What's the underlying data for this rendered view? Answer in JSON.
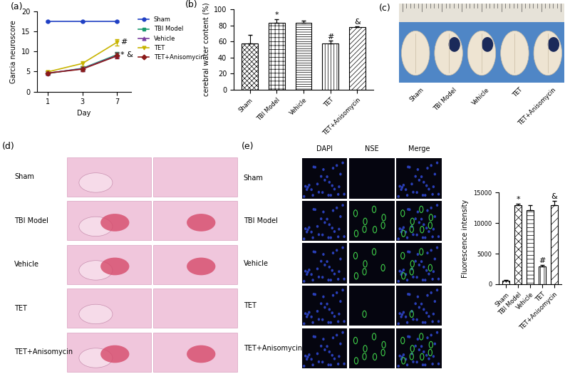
{
  "chart_data": [
    {
      "type": "line",
      "title": "(a)",
      "x_label": "Day",
      "y_label": "Garcia neuroscore",
      "categories": [
        "1",
        "3",
        "7"
      ],
      "ylim": [
        0,
        20
      ],
      "yticks": [
        0,
        5,
        10,
        15,
        20
      ],
      "legend": "right",
      "series": [
        {
          "name": "Sham",
          "color": "#1f3fc4",
          "marker": "circle",
          "values": [
            17.5,
            17.5,
            17.5
          ],
          "errors": [
            0.2,
            0.2,
            0.2
          ]
        },
        {
          "name": "TBI Model",
          "color": "#1a9a6e",
          "marker": "square",
          "values": [
            4.5,
            5.8,
            9.2
          ],
          "errors": [
            0.4,
            0.6,
            0.6
          ]
        },
        {
          "name": "Vehicle",
          "color": "#7b3fa0",
          "marker": "triangle",
          "values": [
            4.6,
            5.7,
            9.0
          ],
          "errors": [
            0.4,
            0.6,
            0.6
          ]
        },
        {
          "name": "TET",
          "color": "#c8b400",
          "marker": "triangle_down",
          "values": [
            4.9,
            7.0,
            12.3
          ],
          "errors": [
            0.4,
            0.6,
            0.8
          ]
        },
        {
          "name": "TET+Anisomycin",
          "color": "#8b1a1a",
          "marker": "diamond",
          "values": [
            4.6,
            5.6,
            8.9
          ],
          "errors": [
            0.4,
            0.6,
            0.7
          ]
        }
      ],
      "annotations": [
        {
          "series": "TET",
          "category": "7",
          "text": "#"
        },
        {
          "series": "TBI Model",
          "category": "7",
          "text": "* &"
        }
      ]
    },
    {
      "type": "bar",
      "title": "(b)",
      "y_label": "cerebral water content (%)",
      "categories": [
        "Sham",
        "TBI Model",
        "Vehicle",
        "TET",
        "TET+Anisomycin"
      ],
      "values": [
        58,
        83,
        83,
        58,
        78
      ],
      "errors": [
        10,
        5,
        3,
        3,
        1
      ],
      "color": "#ffffff",
      "ylim": [
        0,
        100
      ],
      "yticks": [
        0,
        20,
        40,
        60,
        80,
        100
      ],
      "annotations": [
        {
          "category": "TBI Model",
          "text": "*"
        },
        {
          "category": "TET",
          "text": "#"
        },
        {
          "category": "TET+Anisomycin",
          "text": "&"
        }
      ]
    },
    {
      "type": "bar",
      "y_label": "Fluorescence intensity",
      "categories": [
        "Sham",
        "TBI Model",
        "Vehicle",
        "TET",
        "TET+Anisomycin"
      ],
      "values": [
        600,
        12900,
        12100,
        2900,
        13000
      ],
      "errors": [
        100,
        300,
        800,
        300,
        700
      ],
      "color": "#ffffff",
      "ylim": [
        0,
        15000
      ],
      "yticks": [
        0,
        5000,
        10000,
        15000
      ],
      "annotations": [
        {
          "category": "TBI Model",
          "text": "*"
        },
        {
          "category": "TET",
          "text": "#"
        },
        {
          "category": "TET+Anisomycin",
          "text": "&"
        }
      ]
    }
  ],
  "panels": {
    "c": {
      "label": "(c)",
      "samples": [
        "Sham",
        "TBI Model",
        "Vehicle",
        "TET",
        "TET+Anisomycin"
      ]
    },
    "d": {
      "label": "(d)",
      "rows": [
        "Sham",
        "TBI Model",
        "Vehicle",
        "TET",
        "TET+Anisomycin"
      ]
    },
    "e": {
      "label": "(e)",
      "columns": [
        "DAPI",
        "NSE",
        "Merge"
      ],
      "rows": [
        "Sham",
        "TBI Model",
        "Vehicle",
        "TET",
        "TET+Anisomycin"
      ]
    }
  }
}
